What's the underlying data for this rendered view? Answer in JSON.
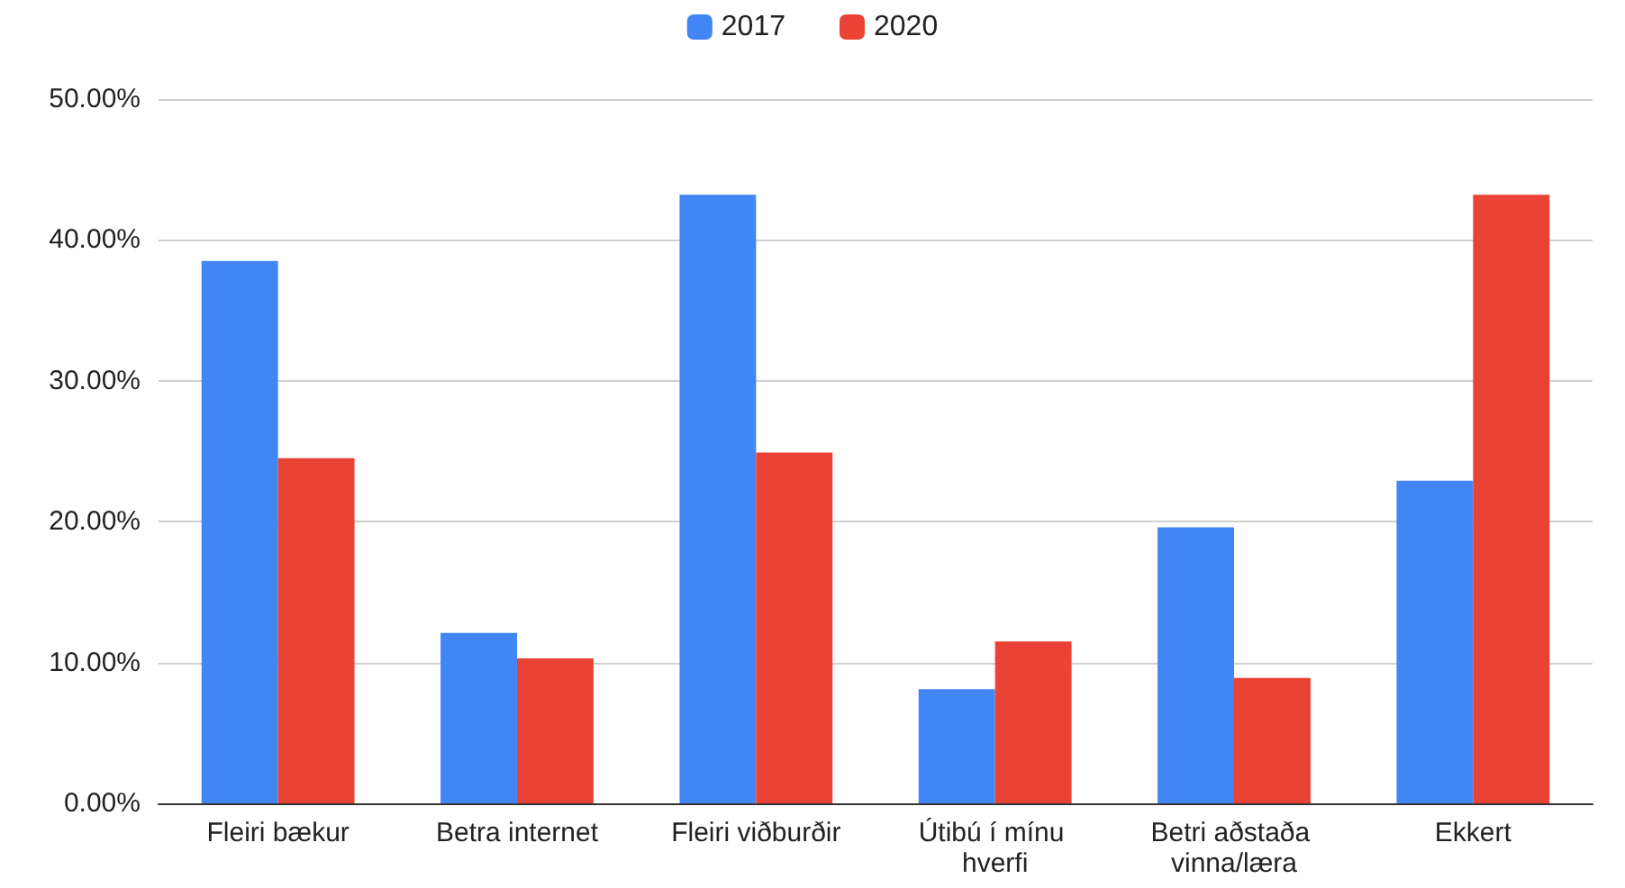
{
  "chart_data": {
    "type": "bar",
    "categories": [
      "Fleiri bækur",
      "Betra internet",
      "Fleiri viðburðir",
      "Útibú í mínu hverfi",
      "Betri aðstaða vinna/læra",
      "Ekkert"
    ],
    "series": [
      {
        "name": "2017",
        "color": "#4285f4",
        "values": [
          38.5,
          12.1,
          43.2,
          8.1,
          19.6,
          22.9
        ]
      },
      {
        "name": "2020",
        "color": "#ea4335",
        "values": [
          24.5,
          10.3,
          24.9,
          11.5,
          8.9,
          43.2
        ]
      }
    ],
    "ylim": [
      0,
      50
    ],
    "yticks": [
      {
        "value": 0,
        "label": "0.00%"
      },
      {
        "value": 10,
        "label": "10.00%"
      },
      {
        "value": 20,
        "label": "20.00%"
      },
      {
        "value": 30,
        "label": "30.00%"
      },
      {
        "value": 40,
        "label": "40.00%"
      },
      {
        "value": 50,
        "label": "50.00%"
      }
    ],
    "grid": "y",
    "legend": "top"
  }
}
